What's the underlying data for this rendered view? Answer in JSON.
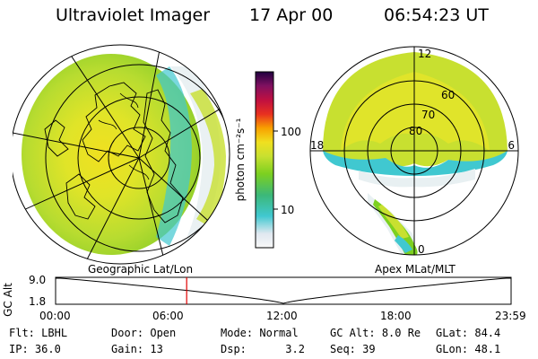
{
  "header": {
    "instrument": "Ultraviolet Imager",
    "date": "17 Apr 00",
    "time": "06:54:23 UT"
  },
  "colorbar": {
    "unit": "photon cm⁻²s⁻¹",
    "ticks": [
      {
        "label": "100",
        "value": 100
      },
      {
        "label": "10",
        "value": 10
      }
    ],
    "colors": [
      "#f8f8f8",
      "#e0e8f0",
      "#40c8d0",
      "#3cb878",
      "#7cd020",
      "#c8e030",
      "#f0e020",
      "#f8a000",
      "#e83020",
      "#c01040",
      "#801060",
      "#200040"
    ]
  },
  "polar_plot": {
    "lat_labels": [
      "80",
      "70",
      "60"
    ],
    "mlt_labels": {
      "top": "12",
      "left": "18",
      "right": "6",
      "bottom": "0"
    }
  },
  "panel_labels": {
    "left": "Geographic Lat/Lon",
    "right": "Apex MLat/MLT"
  },
  "altitude_plot": {
    "ylabel": "GC Alt",
    "y_ticks": [
      "9.0",
      "1.8"
    ],
    "x_ticks": [
      "00:00",
      "06:00",
      "12:00",
      "18:00",
      "23:59"
    ],
    "current_time_hours": 6.906,
    "line_color": "#e00000"
  },
  "info_rows": [
    [
      {
        "label": "Flt:",
        "value": "LBHL"
      },
      {
        "label": "Door:",
        "value": "Open"
      },
      {
        "label": "Mode:",
        "value": "Normal"
      },
      {
        "label": "GC Alt:",
        "value": "8.0 Re"
      },
      {
        "label": "GLat:",
        "value": "84.4"
      }
    ],
    [
      {
        "label": "IP:",
        "value": "36.0"
      },
      {
        "label": "Gain:",
        "value": "13"
      },
      {
        "label": "Dsp:",
        "value": "3.2"
      },
      {
        "label": "Seq:",
        "value": "39"
      },
      {
        "label": "GLon:",
        "value": "48.1"
      }
    ]
  ]
}
